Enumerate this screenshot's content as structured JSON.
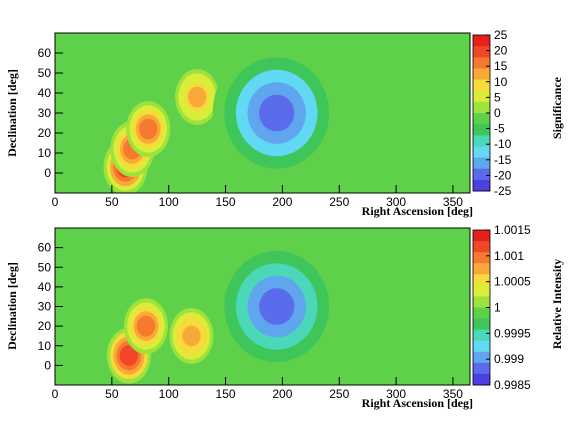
{
  "chart_data": [
    {
      "type": "heatmap",
      "title": "",
      "xlabel": "Right Ascension [deg]",
      "ylabel": "Declination [deg]",
      "colorbar_label": "Significance",
      "xlim": [
        0,
        365
      ],
      "ylim": [
        -10,
        70
      ],
      "xticks": [
        "0",
        "50",
        "100",
        "150",
        "200",
        "250",
        "300",
        "350"
      ],
      "yticks": [
        "0",
        "10",
        "20",
        "30",
        "40",
        "50",
        "60"
      ],
      "zlim": [
        -25,
        25
      ],
      "colorbar_ticks": [
        "25",
        "20",
        "15",
        "10",
        "5",
        "0",
        "-5",
        "-10",
        "-15",
        "-20",
        "-25"
      ],
      "background_value": 0,
      "features": [
        {
          "kind": "excess",
          "ra": 62,
          "dec": 3,
          "value": 24
        },
        {
          "kind": "excess",
          "ra": 68,
          "dec": 12,
          "value": 23
        },
        {
          "kind": "excess",
          "ra": 82,
          "dec": 22,
          "value": 21
        },
        {
          "kind": "excess",
          "ra": 125,
          "dec": 38,
          "value": 14
        },
        {
          "kind": "deficit",
          "ra": 195,
          "dec": 30,
          "value": -24
        }
      ]
    },
    {
      "type": "heatmap",
      "title": "",
      "xlabel": "Right Ascension [deg]",
      "ylabel": "Declination [deg]",
      "colorbar_label": "Relative Intensity",
      "xlim": [
        0,
        365
      ],
      "ylim": [
        -10,
        70
      ],
      "xticks": [
        "0",
        "50",
        "100",
        "150",
        "200",
        "250",
        "300",
        "350"
      ],
      "yticks": [
        "0",
        "10",
        "20",
        "30",
        "40",
        "50",
        "60"
      ],
      "zlim": [
        0.9985,
        1.0015
      ],
      "colorbar_ticks": [
        "1.0015",
        "1.001",
        "1.0005",
        "1",
        "0.9995",
        "0.999",
        "0.9985"
      ],
      "background_value": 1,
      "features": [
        {
          "kind": "excess",
          "ra": 65,
          "dec": 5,
          "value": 1.0015
        },
        {
          "kind": "excess",
          "ra": 80,
          "dec": 20,
          "value": 1.0012
        },
        {
          "kind": "excess",
          "ra": 120,
          "dec": 15,
          "value": 1.001
        },
        {
          "kind": "deficit",
          "ra": 195,
          "dec": 30,
          "value": 0.9986
        }
      ]
    }
  ]
}
